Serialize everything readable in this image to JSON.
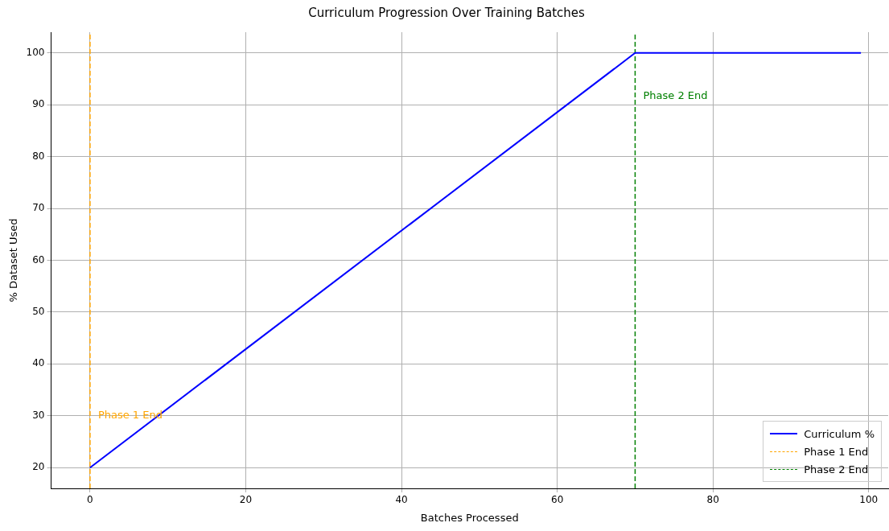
{
  "chart_data": {
    "type": "line",
    "title": "Curriculum Progression Over Training Batches",
    "xlabel": "Batches Processed",
    "ylabel": "% Dataset Used",
    "x": [
      0,
      70,
      99
    ],
    "series": [
      {
        "name": "Curriculum %",
        "color": "#0000ff",
        "values": [
          20,
          100,
          100
        ]
      }
    ],
    "xlim": [
      -5,
      102.5
    ],
    "xticks": [
      0,
      20,
      40,
      60,
      80,
      100
    ],
    "ylim": [
      16,
      104
    ],
    "yticks": [
      20,
      30,
      40,
      50,
      60,
      70,
      80,
      90,
      100
    ],
    "ref_lines": [
      {
        "axis": "x",
        "value": 0,
        "label": "Phase 1 End",
        "color": "#ffa500",
        "line_style": "dashed"
      },
      {
        "axis": "x",
        "value": 70,
        "label": "Phase 2 End",
        "color": "#008000",
        "line_style": "dashed"
      }
    ],
    "grid": true,
    "legend": "bottom right",
    "marker": "none",
    "line_style": "solid"
  }
}
